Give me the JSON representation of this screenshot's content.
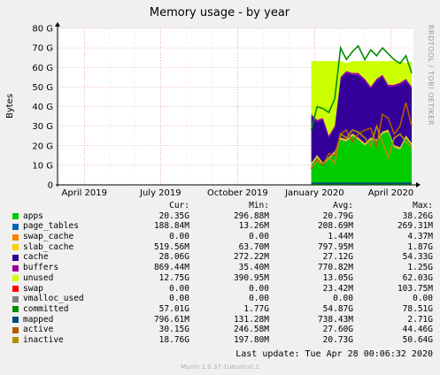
{
  "colors": {
    "apps": "#00cc00",
    "page_tables": "#0066b3",
    "swap_cache": "#ff8000",
    "slab_cache": "#ffcc00",
    "cache": "#330099",
    "buffers": "#990099",
    "unused": "#ccff00",
    "swap": "#ff0000",
    "vmalloc_used": "#808080",
    "committed": "#008f00",
    "mapped": "#00487d",
    "active": "#b35a00",
    "inactive": "#b38f00"
  },
  "chart_data": {
    "type": "area",
    "title": "Memory usage - by year",
    "ylabel": "Bytes",
    "ylim": [
      0,
      80
    ],
    "yticks": [
      "0",
      "10 G",
      "20 G",
      "30 G",
      "40 G",
      "50 G",
      "60 G",
      "70 G",
      "80 G"
    ],
    "xticks": [
      "April 2019",
      "July 2019",
      "October 2019",
      "January 2020",
      "April 2020"
    ],
    "side_label": "RRDTOOL / TOBI OETIKER",
    "grid": true,
    "x": [
      "2019-12-28",
      "2020-01-04",
      "2020-01-11",
      "2020-01-18",
      "2020-01-25",
      "2020-02-01",
      "2020-02-08",
      "2020-02-15",
      "2020-02-22",
      "2020-03-01",
      "2020-03-08",
      "2020-03-15",
      "2020-03-22",
      "2020-03-29",
      "2020-04-05",
      "2020-04-12",
      "2020-04-19",
      "2020-04-26"
    ],
    "stacked_series": [
      {
        "name": "apps",
        "values": [
          10,
          14,
          10,
          13,
          16,
          23,
          22,
          25,
          23,
          20,
          23,
          22,
          26,
          27,
          19,
          18,
          24,
          20
        ]
      },
      {
        "name": "page_tables",
        "values": [
          0.2,
          0.2,
          0.2,
          0.2,
          0.2,
          0.2,
          0.2,
          0.2,
          0.2,
          0.2,
          0.2,
          0.2,
          0.2,
          0.2,
          0.2,
          0.2,
          0.2,
          0.2
        ]
      },
      {
        "name": "swap_cache",
        "values": [
          0,
          0,
          0,
          0,
          0,
          0,
          0,
          0,
          0,
          0,
          0,
          0,
          0,
          0,
          0,
          0,
          0,
          0
        ]
      },
      {
        "name": "slab_cache",
        "values": [
          1,
          1,
          1,
          1,
          1,
          1,
          1,
          1,
          1,
          1,
          1,
          1,
          1,
          1,
          1,
          1,
          1,
          1
        ]
      },
      {
        "name": "cache",
        "values": [
          24,
          17,
          22,
          10,
          12,
          30,
          34,
          30,
          32,
          32,
          25,
          30,
          28,
          22,
          30,
          32,
          28,
          28
        ]
      },
      {
        "name": "buffers",
        "values": [
          1,
          1,
          1,
          1,
          1,
          1,
          1,
          1,
          1,
          1,
          1,
          1,
          1,
          1,
          1,
          1,
          1,
          1
        ]
      },
      {
        "name": "unused",
        "values": [
          27,
          30,
          29,
          38,
          33,
          8,
          4,
          6,
          6,
          9,
          13,
          9,
          7,
          12,
          12,
          11,
          8,
          13
        ]
      },
      {
        "name": "swap",
        "values": [
          0,
          0,
          0,
          0,
          0,
          0,
          0,
          0,
          0,
          0,
          0,
          0,
          0,
          0,
          0,
          0,
          0,
          0
        ]
      }
    ],
    "line_series": [
      {
        "name": "committed",
        "values": [
          28,
          40,
          39,
          37,
          44,
          70,
          64,
          68,
          71,
          64,
          69,
          66,
          70,
          67,
          64,
          62,
          66,
          57
        ]
      },
      {
        "name": "mapped",
        "values": [
          0.8,
          0.8,
          0.8,
          0.8,
          0.8,
          0.8,
          0.8,
          0.8,
          0.8,
          0.8,
          0.8,
          0.8,
          0.8,
          0.8,
          0.8,
          0.8,
          0.8,
          0.8
        ]
      },
      {
        "name": "active",
        "values": [
          8,
          13,
          10,
          16,
          15,
          26,
          28,
          22,
          26,
          28,
          29,
          20,
          36,
          34,
          26,
          30,
          42,
          30
        ]
      },
      {
        "name": "inactive",
        "values": [
          9,
          12,
          11,
          14,
          11,
          26,
          24,
          28,
          27,
          24,
          20,
          30,
          22,
          14,
          24,
          26,
          22,
          19
        ]
      }
    ]
  },
  "legend": {
    "headers": {
      "cur": "Cur:",
      "min": "Min:",
      "avg": "Avg:",
      "max": "Max:"
    },
    "rows": [
      {
        "key": "apps",
        "name": "apps",
        "cur": "20.35G",
        "min": "296.88M",
        "avg": "20.79G",
        "max": "38.26G"
      },
      {
        "key": "page_tables",
        "name": "page_tables",
        "cur": "188.84M",
        "min": "13.26M",
        "avg": "208.69M",
        "max": "269.31M"
      },
      {
        "key": "swap_cache",
        "name": "swap_cache",
        "cur": "0.00",
        "min": "0.00",
        "avg": "1.44M",
        "max": "4.37M"
      },
      {
        "key": "slab_cache",
        "name": "slab_cache",
        "cur": "519.56M",
        "min": "63.70M",
        "avg": "797.95M",
        "max": "1.87G"
      },
      {
        "key": "cache",
        "name": "cache",
        "cur": "28.06G",
        "min": "272.22M",
        "avg": "27.12G",
        "max": "54.33G"
      },
      {
        "key": "buffers",
        "name": "buffers",
        "cur": "869.44M",
        "min": "35.40M",
        "avg": "770.82M",
        "max": "1.25G"
      },
      {
        "key": "unused",
        "name": "unused",
        "cur": "12.75G",
        "min": "390.95M",
        "avg": "13.05G",
        "max": "62.03G"
      },
      {
        "key": "swap",
        "name": "swap",
        "cur": "0.00",
        "min": "0.00",
        "avg": "23.42M",
        "max": "103.75M"
      },
      {
        "key": "vmalloc_used",
        "name": "vmalloc_used",
        "cur": "0.00",
        "min": "0.00",
        "avg": "0.00",
        "max": "0.00"
      },
      {
        "key": "committed",
        "name": "committed",
        "cur": "57.01G",
        "min": "1.77G",
        "avg": "54.87G",
        "max": "78.51G"
      },
      {
        "key": "mapped",
        "name": "mapped",
        "cur": "796.61M",
        "min": "131.28M",
        "avg": "738.43M",
        "max": "2.71G"
      },
      {
        "key": "active",
        "name": "active",
        "cur": "30.15G",
        "min": "246.58M",
        "avg": "27.60G",
        "max": "44.46G"
      },
      {
        "key": "inactive",
        "name": "inactive",
        "cur": "18.76G",
        "min": "197.80M",
        "avg": "20.73G",
        "max": "50.64G"
      }
    ]
  },
  "last_update": "Last update: Tue Apr 28 00:06:32 2020",
  "footer": "Munin 2.0.37-1ubuntu0.1"
}
